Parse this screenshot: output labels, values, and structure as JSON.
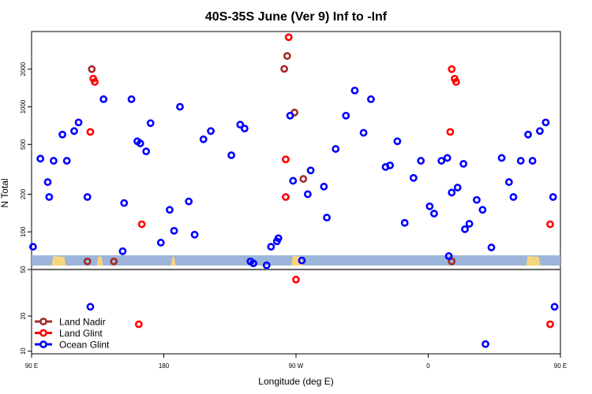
{
  "chart_data": {
    "type": "scatter",
    "title": "40S-35S June (Ver 9)   Inf to -Inf",
    "xlabel": "Longitude (deg E)",
    "ylabel": "N Total",
    "x_axis": {
      "min": 90,
      "max": 450,
      "ticks": [
        {
          "value": 90,
          "label": "90 E"
        },
        {
          "value": 180,
          "label": "180"
        },
        {
          "value": 270,
          "label": "90 W"
        },
        {
          "value": 360,
          "label": "0"
        },
        {
          "value": 450,
          "label": "90 E"
        },
        {
          "value": 540,
          "label": "180"
        }
      ]
    },
    "upper_panel": {
      "scale": "log",
      "ylim": [
        50,
        4000
      ],
      "ticks": [
        50,
        100,
        200,
        500,
        1000,
        2000
      ]
    },
    "lower_panel": {
      "scale": "log",
      "ylim": [
        9.5,
        50
      ],
      "ticks": [
        10,
        20
      ]
    },
    "land_strip_color": "#9db5db",
    "land_color": "#f8d57d",
    "series": [
      {
        "name": "Land Nadir",
        "color": "#a52a2a",
        "points": [
          [
            128,
            58
          ],
          [
            131,
            2000
          ],
          [
            262,
            2010
          ],
          [
            264,
            2550
          ],
          [
            269,
            900
          ],
          [
            275,
            265
          ],
          [
            146,
            58
          ],
          [
            376,
            58
          ]
        ]
      },
      {
        "name": "Land Glint",
        "color": "#ff0000",
        "points": [
          [
            132,
            1680
          ],
          [
            133,
            1580
          ],
          [
            130,
            630
          ],
          [
            165,
            115
          ],
          [
            163,
            17
          ],
          [
            265,
            3600
          ],
          [
            270,
            41
          ],
          [
            263,
            380
          ],
          [
            263,
            190
          ],
          [
            376,
            2000
          ],
          [
            378,
            1680
          ],
          [
            379,
            1580
          ],
          [
            375,
            630
          ],
          [
            443,
            17
          ],
          [
            443,
            115
          ]
        ]
      },
      {
        "name": "Ocean Glint",
        "color": "#0000ff",
        "points": [
          [
            91,
            76
          ],
          [
            96,
            385
          ],
          [
            101,
            250
          ],
          [
            102,
            190
          ],
          [
            105,
            370
          ],
          [
            111,
            600
          ],
          [
            114,
            370
          ],
          [
            119,
            640
          ],
          [
            122,
            750
          ],
          [
            128,
            190
          ],
          [
            130,
            24
          ],
          [
            139,
            1150
          ],
          [
            152,
            70
          ],
          [
            153,
            170
          ],
          [
            158,
            1150
          ],
          [
            162,
            530
          ],
          [
            164,
            510
          ],
          [
            168,
            440
          ],
          [
            171,
            740
          ],
          [
            178,
            82
          ],
          [
            184,
            150
          ],
          [
            187,
            102
          ],
          [
            191,
            1000
          ],
          [
            197,
            175
          ],
          [
            201,
            95
          ],
          [
            207,
            550
          ],
          [
            212,
            640
          ],
          [
            226,
            410
          ],
          [
            232,
            720
          ],
          [
            235,
            670
          ],
          [
            239,
            58
          ],
          [
            241,
            56
          ],
          [
            250,
            54
          ],
          [
            253,
            76
          ],
          [
            257,
            84
          ],
          [
            258,
            89
          ],
          [
            266,
            850
          ],
          [
            268,
            256
          ],
          [
            274,
            59
          ],
          [
            278,
            200
          ],
          [
            280,
            310
          ],
          [
            289,
            230
          ],
          [
            291,
            130
          ],
          [
            297,
            460
          ],
          [
            304,
            850
          ],
          [
            310,
            1350
          ],
          [
            316,
            620
          ],
          [
            321,
            1150
          ],
          [
            331,
            330
          ],
          [
            334,
            340
          ],
          [
            339,
            530
          ],
          [
            344,
            118
          ],
          [
            350,
            270
          ],
          [
            355,
            370
          ],
          [
            361,
            160
          ],
          [
            364,
            140
          ],
          [
            369,
            370
          ],
          [
            373,
            390
          ],
          [
            374,
            64
          ],
          [
            376,
            206
          ],
          [
            380,
            226
          ],
          [
            384,
            350
          ],
          [
            385,
            105
          ],
          [
            388,
            116
          ],
          [
            393,
            180
          ],
          [
            397,
            150
          ],
          [
            399,
            11.5
          ],
          [
            403,
            75
          ],
          [
            410,
            390
          ],
          [
            415,
            250
          ],
          [
            418,
            190
          ],
          [
            423,
            370
          ],
          [
            428,
            600
          ],
          [
            431,
            370
          ],
          [
            436,
            640
          ],
          [
            440,
            750
          ],
          [
            445,
            190
          ],
          [
            446,
            24
          ]
        ]
      }
    ],
    "legend": {
      "position": "bottom-left"
    }
  }
}
